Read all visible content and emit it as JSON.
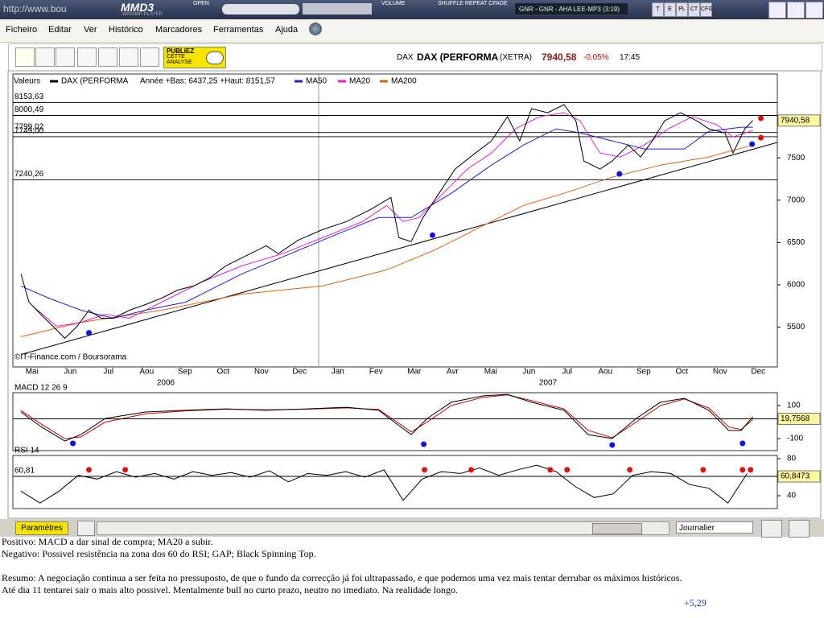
{
  "player": {
    "address": "http://www.bou",
    "logo": "MMD3",
    "logo_sub": "WINAMP-PLAYER",
    "open": "OPEN",
    "volume": "VOLUME",
    "modes": "SHUFFLE REPEAT CFADE",
    "track": "GNR - GNR - AHA LEE-MP3 (3:19)",
    "buttons": [
      "T",
      "E",
      "PL",
      "CT",
      "CFG"
    ]
  },
  "menu": [
    "Ficheiro",
    "Editar",
    "Ver",
    "Histórico",
    "Marcadores",
    "Ferramentas",
    "Ajuda"
  ],
  "toolbar": {
    "ad": [
      "PUBLIEZ",
      "CETTE",
      "ANALYSE"
    ],
    "symbol": "DAX",
    "name": "DAX (PERFORMA",
    "market": "(XETRA)",
    "price": "7940,58",
    "change": "-0,05%",
    "time": "17:45"
  },
  "chart_data": [
    {
      "type": "line",
      "legend_title": "Valeurs",
      "stats": "Année +Bas: 6437,25 +Haut: 8151,57",
      "credit": "©IT-Finance.com / Boursorama",
      "categories": [
        "Mai",
        "Jun",
        "Jul",
        "Aou",
        "Sep",
        "Oct",
        "Nov",
        "Dec",
        "Jan",
        "Fev",
        "Mar",
        "Avr",
        "Mai",
        "Jun",
        "Jul",
        "Aou",
        "Sep",
        "Oct",
        "Nov",
        "Dec"
      ],
      "years": [
        "2006",
        "2007"
      ],
      "xlim": [
        -0.5,
        19.5
      ],
      "ylim": [
        5030,
        8490
      ],
      "yticks": [
        7500,
        7000,
        6500,
        6000,
        5500
      ],
      "levels": [
        {
          "value": 8153.63,
          "label": "8153,63"
        },
        {
          "value": 8000.49,
          "label": "8000,49"
        },
        {
          "value": 7799.02,
          "label": "7799,02"
        },
        {
          "value": 7749.0,
          "label": "7749,00"
        },
        {
          "value": 7240.26,
          "label": "7240,26"
        }
      ],
      "last": {
        "value": 7940.58,
        "label": "7940,58"
      },
      "series": [
        {
          "name": "DAX (PERFORMA",
          "color": "#000000",
          "x": [
            -0.29,
            -0.08,
            0.23,
            0.55,
            0.86,
            1.18,
            1.49,
            1.81,
            2.13,
            2.55,
            2.97,
            3.39,
            3.81,
            4.23,
            4.65,
            5.07,
            5.49,
            6.13,
            6.44,
            6.97,
            7.6,
            8.23,
            8.86,
            9.39,
            9.6,
            9.92,
            10.23,
            10.65,
            11.07,
            11.6,
            12.02,
            12.44,
            12.76,
            13.07,
            13.49,
            13.92,
            14.23,
            14.44,
            14.86,
            15.18,
            15.6,
            15.92,
            16.23,
            16.55,
            16.97,
            17.39,
            17.71,
            18.13,
            18.34,
            18.65,
            18.86
          ],
          "values": [
            6129,
            5795,
            5652,
            5510,
            5367,
            5510,
            5700,
            5605,
            5605,
            5700,
            5767,
            5843,
            5938,
            5986,
            6081,
            6224,
            6319,
            6462,
            6367,
            6529,
            6652,
            6748,
            6890,
            7033,
            6557,
            6510,
            6795,
            7081,
            7367,
            7557,
            7700,
            7986,
            7700,
            8081,
            8033,
            8129,
            7938,
            7462,
            7367,
            7462,
            7652,
            7510,
            7700,
            7938,
            8033,
            7938,
            7843,
            7795,
            7557,
            7843,
            7940.58
          ]
        },
        {
          "name": "MA50",
          "color": "#1f1fd0",
          "x": [
            -0.29,
            0.44,
            1.28,
            2.13,
            2.97,
            4.02,
            5.49,
            6.76,
            8.02,
            9.07,
            9.92,
            10.97,
            12.02,
            12.86,
            13.71,
            14.34,
            15.18,
            16.02,
            17.07,
            17.71,
            18.55,
            18.86
          ],
          "values": [
            5986,
            5843,
            5700,
            5605,
            5700,
            5795,
            6129,
            6367,
            6605,
            6795,
            6795,
            7081,
            7414,
            7652,
            7843,
            7795,
            7700,
            7605,
            7605,
            7814,
            7862,
            7862
          ]
        },
        {
          "name": "MA20",
          "color": "#e020d0",
          "x": [
            0.02,
            0.65,
            1.28,
            1.92,
            2.55,
            3.39,
            4.44,
            5.49,
            6.55,
            7.6,
            8.65,
            9.28,
            9.71,
            10.13,
            10.76,
            11.39,
            12.02,
            12.65,
            13.28,
            13.92,
            14.34,
            14.86,
            15.39,
            16.02,
            16.65,
            17.28,
            17.92,
            18.34,
            18.86
          ],
          "values": [
            5748,
            5510,
            5557,
            5652,
            5605,
            5795,
            6033,
            6224,
            6367,
            6557,
            6748,
            6938,
            6748,
            6795,
            7081,
            7367,
            7557,
            7843,
            7986,
            8033,
            7938,
            7557,
            7510,
            7652,
            7843,
            7986,
            7890,
            7748,
            7824
          ]
        },
        {
          "name": "MA200",
          "color": "#e06010",
          "x": [
            -0.29,
            1.28,
            3.39,
            5.49,
            7.6,
            9.28,
            10.55,
            11.81,
            12.86,
            13.92,
            15.18,
            16.44,
            17.71,
            18.86
          ],
          "values": [
            5386,
            5557,
            5700,
            5890,
            5986,
            6176,
            6414,
            6700,
            6938,
            7081,
            7271,
            7414,
            7510,
            7652
          ]
        }
      ],
      "trendline": {
        "color": "#000000",
        "x": [
          -0.29,
          19.49
        ],
        "values": [
          5176,
          7681
        ]
      },
      "markers": [
        {
          "color": "#1010e0",
          "x": [
            1.49,
            10.48,
            15.37,
            18.84
          ],
          "values": [
            5433,
            6586,
            7310,
            7662
          ]
        },
        {
          "color": "#e01010",
          "x": [
            19.07,
            19.07
          ],
          "values": [
            7967,
            7738
          ]
        }
      ]
    },
    {
      "type": "line",
      "title": "MACD 12 26 9",
      "xlim": [
        -0.5,
        19.5
      ],
      "ylim": [
        -173,
        178
      ],
      "yticks": [
        100,
        -100
      ],
      "last": {
        "value": 19.7568,
        "label": "19,7568"
      },
      "series": [
        {
          "color": "#000000",
          "x": [
            -0.29,
            0.23,
            0.86,
            1.28,
            1.92,
            2.97,
            4.02,
            5.07,
            6.13,
            7.18,
            8.23,
            9.07,
            9.49,
            9.92,
            10.34,
            10.97,
            11.81,
            12.44,
            13.07,
            13.92,
            14.55,
            15.18,
            15.81,
            16.44,
            17.07,
            17.71,
            18.23,
            18.55,
            18.86
          ],
          "values": [
            61,
            -27,
            -115,
            -76,
            22,
            61,
            71,
            80,
            71,
            80,
            90,
            71,
            -2,
            -76,
            22,
            120,
            159,
            168,
            120,
            71,
            -76,
            -100,
            22,
            120,
            144,
            71,
            -51,
            -51,
            32
          ]
        },
        {
          "color": "#cc0000",
          "x": [
            -0.29,
            0.23,
            0.86,
            1.28,
            1.92,
            2.97,
            4.02,
            5.07,
            6.13,
            7.18,
            8.23,
            9.07,
            9.49,
            9.92,
            10.34,
            10.97,
            11.81,
            12.44,
            13.07,
            13.92,
            14.55,
            15.18,
            15.81,
            16.44,
            17.07,
            17.71,
            18.23,
            18.55,
            18.86
          ],
          "values": [
            70,
            -10,
            -100,
            -90,
            0,
            50,
            68,
            78,
            74,
            78,
            86,
            76,
            10,
            -60,
            0,
            100,
            150,
            165,
            130,
            80,
            -50,
            -95,
            0,
            100,
            140,
            85,
            -30,
            -45,
            15
          ]
        }
      ],
      "markers": [
        {
          "color": "#1010e0",
          "x": [
            1.07,
            10.25,
            15.18,
            18.59
          ],
          "values": [
            -129,
            -134,
            -139,
            -129
          ]
        }
      ]
    },
    {
      "type": "line",
      "title": "RSI 14",
      "xlim": [
        -0.5,
        19.5
      ],
      "ylim": [
        26.1,
        83.5
      ],
      "yticks": [
        80,
        40
      ],
      "levels": [
        {
          "value": 60.81,
          "label": "60,81"
        }
      ],
      "last": {
        "value": 60.8473,
        "label": "60,8473"
      },
      "series": [
        {
          "color": "#000000",
          "x": [
            -0.29,
            0.21,
            0.71,
            1.21,
            1.71,
            2.21,
            2.71,
            3.21,
            3.71,
            4.21,
            4.71,
            5.21,
            5.71,
            6.21,
            6.71,
            7.21,
            7.71,
            8.21,
            8.71,
            9.21,
            9.71,
            10.21,
            10.71,
            11.21,
            11.71,
            12.21,
            12.71,
            13.21,
            13.71,
            14.21,
            14.71,
            15.21,
            15.71,
            16.21,
            16.71,
            17.21,
            17.71,
            18.21,
            18.71
          ],
          "values": [
            45,
            32,
            45,
            62,
            58,
            66,
            60,
            64,
            58,
            66,
            62,
            65,
            60,
            67,
            55,
            64,
            62,
            66,
            60,
            68,
            35,
            58,
            66,
            64,
            70,
            62,
            68,
            73,
            66,
            50,
            38,
            42,
            62,
            66,
            64,
            52,
            48,
            32,
            64
          ]
        }
      ],
      "markers": [
        {
          "color": "#e01010",
          "x": [
            1.49,
            2.44,
            10.27,
            11.49,
            13.56,
            14.0,
            15.64,
            17.56,
            18.59,
            18.8
          ],
          "values": [
            68,
            68,
            68,
            68,
            68,
            68,
            68,
            68,
            68,
            68
          ]
        }
      ]
    }
  ],
  "bottom": {
    "params": "Paramètres",
    "period": "Journalier"
  },
  "comments": [
    "Positivo: MACD a dar sinal de compra; MA20 a subir.",
    "Negativo: Possivel resistência na zona dos 60 do RSI; GAP; Black Spinning Top.",
    "Resumo: A negociação continua a ser feita no pressuposto, de que o fundo da correcção já foi ultrapassado, e que podemos uma vez mais tentar derrubar os máximos históricos.",
    "Até dia 11 tentarei sair o mais alto possivel. Mentalmente bull no curto prazo, neutro no imediato. Na realidade longo."
  ],
  "score": "+5,29"
}
